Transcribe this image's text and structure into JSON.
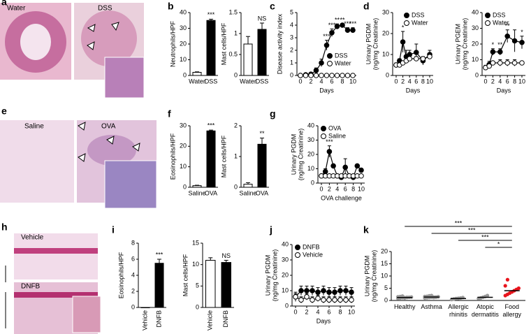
{
  "chart_data": [
    {
      "type": "bar",
      "panel": "b",
      "ylabel": "Neutrophils/HPF",
      "categories": [
        "Water",
        "DSS"
      ],
      "values": [
        2,
        35
      ],
      "errors": [
        0.3,
        0.8
      ],
      "colors": [
        "#ffffff",
        "#000000"
      ],
      "labels": [
        null,
        "***"
      ],
      "ylim": [
        0,
        40
      ],
      "yticks": [
        0,
        10,
        20,
        30,
        40
      ]
    },
    {
      "type": "bar",
      "ylabel": "Mast cells/HPF",
      "categories": [
        "Water",
        "DSS"
      ],
      "values": [
        0.75,
        1.1
      ],
      "errors": [
        0.18,
        0.15
      ],
      "colors": [
        "#ffffff",
        "#000000"
      ],
      "labels": [
        null,
        "NS"
      ],
      "ylim": [
        0,
        1.5
      ],
      "yticks": [
        0,
        0.5,
        1,
        1.5
      ]
    },
    {
      "type": "line",
      "panel": "c",
      "ylabel": "Disease activity index",
      "xlabel": "Days",
      "x": [
        0,
        1,
        2,
        3,
        4,
        5,
        6,
        7,
        8,
        9,
        10
      ],
      "xlim": [
        0,
        10
      ],
      "xticks": [
        0,
        2,
        4,
        6,
        8,
        10
      ],
      "ylim": [
        0,
        5
      ],
      "yticks": [
        0,
        1,
        2,
        3,
        4,
        5
      ],
      "legend": "lower right",
      "series": [
        {
          "name": "DSS",
          "marker": "filled",
          "color": "#000000",
          "values": [
            0,
            0.05,
            0.1,
            0.4,
            1.0,
            2.4,
            3.4,
            3.9,
            4.0,
            3.6,
            3.6
          ],
          "errors": [
            0,
            0.05,
            0.1,
            0.2,
            0.3,
            0.4,
            0.3,
            0.2,
            0.1,
            0.2,
            0.2
          ],
          "star_labels": [
            null,
            null,
            null,
            null,
            null,
            "***",
            "***",
            "**",
            "**",
            "***",
            "***"
          ]
        },
        {
          "name": "Water",
          "marker": "open",
          "color": "#000000",
          "values": [
            0,
            0,
            0,
            0,
            0,
            0,
            0,
            0,
            0,
            0,
            0
          ],
          "errors": [
            0,
            0,
            0,
            0,
            0,
            0,
            0,
            0,
            0,
            0,
            0
          ]
        }
      ]
    },
    {
      "type": "line",
      "panel": "d",
      "ylabel": [
        "Urinary PGDM",
        "(ng/mg Creatinine)"
      ],
      "xlabel": "Days",
      "x": [
        0,
        1,
        2,
        3,
        4,
        6,
        8,
        10
      ],
      "xlim": [
        0,
        10
      ],
      "xticks": [
        0,
        2,
        4,
        6,
        8,
        10
      ],
      "ylim": [
        0,
        30
      ],
      "yticks": [
        0,
        10,
        20,
        30
      ],
      "legend": "upper right",
      "series": [
        {
          "name": "DSS",
          "marker": "filled",
          "color": "#000000",
          "values": [
            5,
            7,
            16,
            9,
            10,
            11,
            7,
            10
          ],
          "errors": [
            1,
            1,
            5,
            3,
            2,
            4,
            2,
            2
          ],
          "star_labels": [
            null,
            null,
            "*",
            null,
            null,
            null,
            null,
            null
          ]
        },
        {
          "name": "Water",
          "marker": "open",
          "color": "#000000",
          "values": [
            5,
            5,
            6,
            7,
            8,
            8,
            8,
            9
          ],
          "errors": [
            1,
            1,
            1,
            1,
            1,
            1,
            1,
            1
          ]
        }
      ]
    },
    {
      "type": "line",
      "ylabel": [
        "Urinary PGEM",
        "(ng/mg Creatinine)"
      ],
      "xlabel": "Days",
      "x": [
        0,
        1,
        2,
        4,
        6,
        8,
        10
      ],
      "xlim": [
        0,
        10
      ],
      "xticks": [
        0,
        2,
        4,
        6,
        8,
        10
      ],
      "ylim": [
        0,
        40
      ],
      "yticks": [
        0,
        10,
        20,
        30,
        40
      ],
      "legend": "upper left",
      "series": [
        {
          "name": "DSS",
          "marker": "filled",
          "color": "#000000",
          "values": [
            5,
            7,
            15,
            15,
            25,
            22,
            21
          ],
          "errors": [
            1.5,
            2,
            2,
            2,
            4,
            7,
            4
          ],
          "star_labels": [
            null,
            null,
            "*",
            "**",
            "**",
            null,
            "*"
          ]
        },
        {
          "name": "Water",
          "marker": "open",
          "color": "#000000",
          "values": [
            5,
            6,
            8,
            8,
            8,
            8,
            8
          ],
          "errors": [
            1,
            1,
            1,
            2,
            2,
            2,
            1
          ]
        }
      ]
    },
    {
      "type": "bar",
      "panel": "f",
      "ylabel": "Eosinophils/HPF",
      "categories": [
        "Saline",
        "OVA"
      ],
      "values": [
        0.8,
        27.5
      ],
      "errors": [
        0.2,
        0.4
      ],
      "colors": [
        "#ffffff",
        "#000000"
      ],
      "labels": [
        null,
        "***"
      ],
      "ylim": [
        0,
        30
      ],
      "yticks": [
        0,
        10,
        20,
        30
      ]
    },
    {
      "type": "bar",
      "ylabel": "Mast cells/HPF",
      "categories": [
        "Saline",
        "OVA"
      ],
      "values": [
        0.1,
        1.4
      ],
      "errors": [
        0.05,
        0.2
      ],
      "colors": [
        "#ffffff",
        "#000000"
      ],
      "labels": [
        null,
        "**"
      ],
      "ylim": [
        0,
        2
      ],
      "yticks": [
        0,
        1,
        2
      ]
    },
    {
      "type": "line",
      "panel": "g",
      "ylabel": [
        "Urinary PGDM",
        "(ng/mg Creatinine)"
      ],
      "xlabel": "OVA challenge",
      "x": [
        0,
        1,
        2,
        3,
        4,
        5,
        6,
        7,
        8,
        9,
        10
      ],
      "xlim": [
        0,
        10
      ],
      "xticks": [
        0,
        2,
        4,
        6,
        8,
        10
      ],
      "ylim": [
        0,
        40
      ],
      "yticks": [
        0,
        10,
        20,
        30,
        40
      ],
      "legend": "upper left",
      "series": [
        {
          "name": "OVA",
          "marker": "filled",
          "color": "#000000",
          "values": [
            5,
            8,
            22,
            12,
            5,
            4,
            11,
            5,
            4,
            12,
            9
          ],
          "errors": [
            1,
            2,
            4,
            1,
            1,
            1,
            6,
            1,
            1,
            1,
            1
          ],
          "star_labels": [
            null,
            null,
            "***",
            null,
            null,
            null,
            null,
            null,
            null,
            null,
            null
          ]
        },
        {
          "name": "Saline",
          "marker": "open",
          "color": "#000000",
          "values": [
            5,
            5,
            5,
            5,
            5,
            5,
            5,
            5,
            5,
            5,
            5
          ],
          "errors": [
            1,
            1,
            1,
            1,
            1,
            1,
            1,
            1,
            1,
            1,
            1
          ]
        }
      ]
    },
    {
      "type": "bar",
      "panel": "i",
      "ylabel": "Eosinophils/HPF",
      "categories": [
        "Vehicle",
        "DNFB"
      ],
      "values": [
        0,
        5.5
      ],
      "errors": [
        0,
        0.5
      ],
      "colors": [
        "#ffffff",
        "#000000"
      ],
      "labels": [
        null,
        "***"
      ],
      "ylim": [
        0,
        8
      ],
      "yticks": [
        0,
        2,
        4,
        6,
        8
      ],
      "rotate_labels": true
    },
    {
      "type": "bar",
      "ylabel": "Mast cells/HPF",
      "categories": [
        "Vehicle",
        "DNFB"
      ],
      "values": [
        11,
        10.5
      ],
      "errors": [
        0.6,
        0.5
      ],
      "colors": [
        "#ffffff",
        "#000000"
      ],
      "labels": [
        null,
        "NS"
      ],
      "ylim": [
        0,
        15
      ],
      "yticks": [
        0,
        5,
        10,
        15
      ],
      "rotate_labels": true
    },
    {
      "type": "line",
      "panel": "j",
      "ylabel": [
        "Urinary PGDM",
        "(ng/mg Creatinine)"
      ],
      "xlabel": "Days",
      "x": [
        0,
        1,
        2,
        3,
        4,
        5,
        6,
        7,
        8,
        9,
        10
      ],
      "xlim": [
        0,
        10
      ],
      "xticks": [
        0,
        2,
        4,
        6,
        8,
        10
      ],
      "ylim": [
        0,
        40
      ],
      "yticks": [
        0,
        10,
        20,
        30,
        40
      ],
      "legend": "upper left",
      "series": [
        {
          "name": "DNFB",
          "marker": "filled",
          "color": "#000000",
          "values": [
            6,
            10,
            10,
            10,
            9,
            10,
            9,
            9,
            10,
            10,
            9
          ],
          "errors": [
            3,
            3,
            3,
            3,
            3,
            3,
            3,
            3,
            3,
            3,
            3
          ]
        },
        {
          "name": "Vehicle",
          "marker": "open",
          "color": "#000000",
          "values": [
            6,
            4,
            6,
            4,
            5,
            4,
            4,
            4,
            4,
            4,
            4
          ],
          "errors": [
            2,
            2,
            2,
            2,
            2,
            2,
            2,
            2,
            2,
            2,
            2
          ]
        }
      ]
    },
    {
      "type": "dot",
      "panel": "k",
      "ylabel": [
        "Urinary PGDM",
        "(ng/mg Creatinine)"
      ],
      "categories": [
        "Healthy",
        "Asthma",
        "Allergic rhinitis",
        "Atopic dermatitis",
        "Food allergy"
      ],
      "colors": [
        "#999999",
        "#999999",
        "#999999",
        "#999999",
        "#e8141c"
      ],
      "ylim": [
        0,
        20
      ],
      "yticks": [
        0,
        5,
        10,
        15,
        20
      ],
      "points": [
        [
          0.8,
          1.0,
          1.1,
          1.2,
          1.2,
          1.3,
          1.4,
          1.5,
          1.6,
          1.8,
          1.0,
          1.3
        ],
        [
          1.0,
          1.1,
          1.2,
          1.3,
          1.4,
          1.4,
          1.5,
          1.6,
          1.7,
          1.9,
          2.0,
          1.2,
          1.3,
          1.5
        ],
        [
          0.4,
          0.6,
          0.8,
          0.9,
          1.0,
          1.2
        ],
        [
          0.8,
          1.0,
          1.3,
          1.6,
          2.0
        ],
        [
          2.0,
          2.5,
          3.0,
          3.5,
          4.0,
          4.5,
          5.0,
          6.0,
          8.5
        ]
      ],
      "medians": [
        1.2,
        1.4,
        0.8,
        1.3,
        4.0
      ],
      "comparisons": [
        {
          "groups": [
            "Healthy",
            "Food allergy"
          ],
          "label": "***"
        },
        {
          "groups": [
            "Asthma",
            "Food allergy"
          ],
          "label": "***"
        },
        {
          "groups": [
            "Allergic rhinitis",
            "Food allergy"
          ],
          "label": "***"
        },
        {
          "groups": [
            "Atopic dermatitis",
            "Food allergy"
          ],
          "label": "*"
        }
      ]
    }
  ],
  "images": [
    {
      "panel": "a",
      "labels": [
        "Water",
        "DSS"
      ]
    },
    {
      "panel": "e",
      "labels": [
        "Saline",
        "OVA"
      ]
    },
    {
      "panel": "h",
      "labels": [
        "Vehicle",
        "DNFB"
      ]
    }
  ]
}
